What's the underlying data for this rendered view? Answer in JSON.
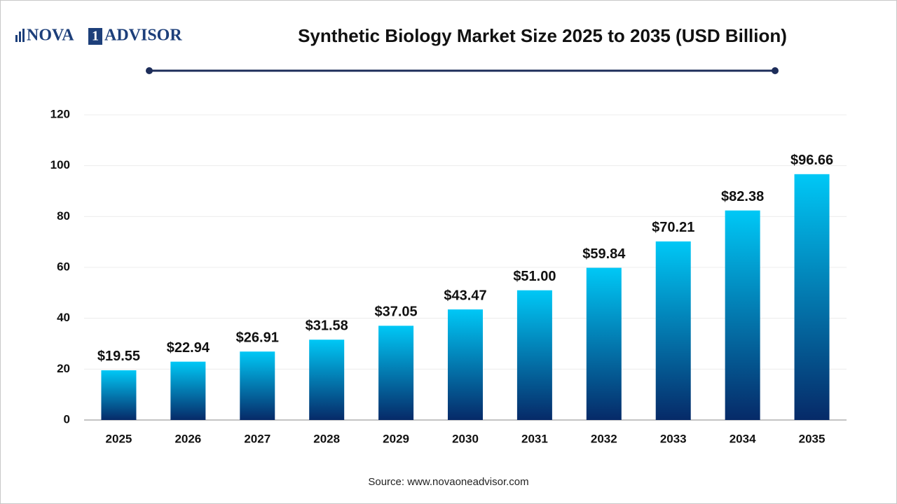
{
  "logo": {
    "left": "NOVA",
    "mark": "1",
    "right": "ADVISOR"
  },
  "chart_data": {
    "type": "bar",
    "title": "Synthetic Biology Market Size 2025 to 2035  (USD Billion)",
    "categories": [
      "2025",
      "2026",
      "2027",
      "2028",
      "2029",
      "2030",
      "2031",
      "2032",
      "2033",
      "2034",
      "2035"
    ],
    "values": [
      19.55,
      22.94,
      26.91,
      31.58,
      37.05,
      43.47,
      51.0,
      59.84,
      70.21,
      82.38,
      96.66
    ],
    "value_labels": [
      "$19.55",
      "$22.94",
      "$26.91",
      "$31.58",
      "$37.05",
      "$43.47",
      "$51.00",
      "$59.84",
      "$70.21",
      "$82.38",
      "$96.66"
    ],
    "gradient": [
      "#00c8f6",
      "#062a68"
    ],
    "ylim": [
      0,
      120
    ],
    "yticks": [
      0,
      20,
      40,
      60,
      80,
      100,
      120
    ],
    "grid": true,
    "source": "Source: www.novaoneadvisor.com"
  }
}
